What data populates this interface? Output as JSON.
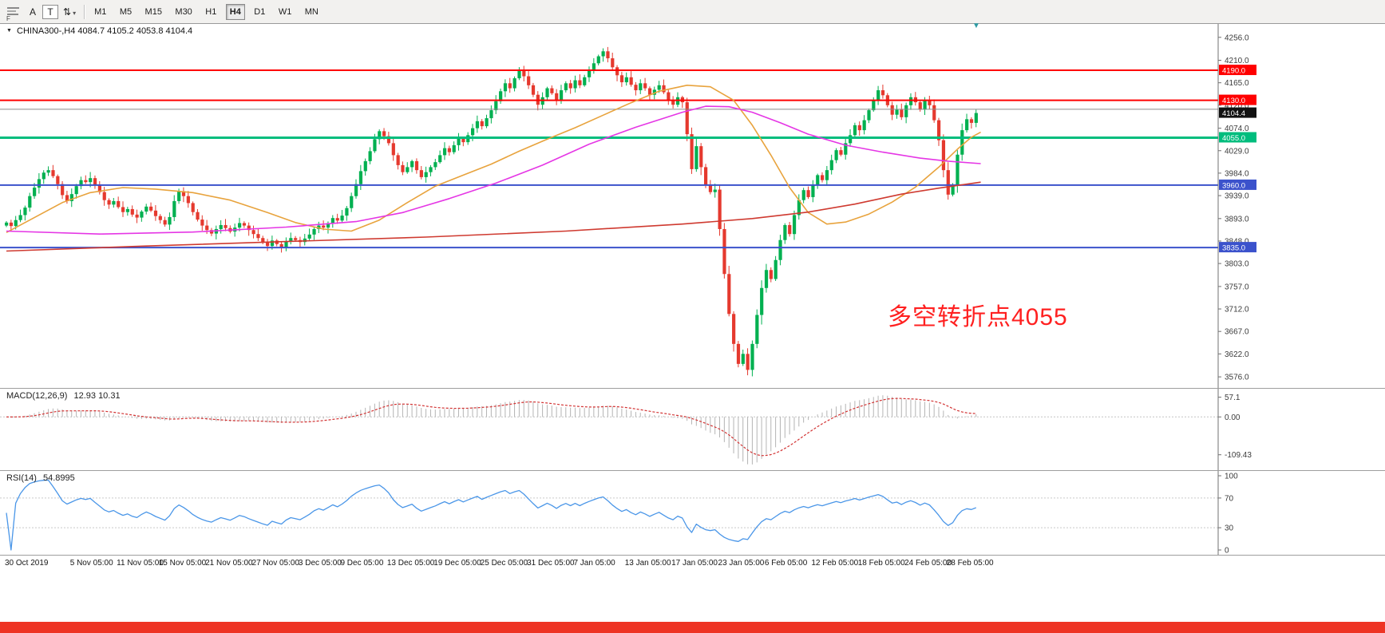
{
  "colors": {
    "up": "#00b050",
    "down": "#e5392e",
    "ma_fast": "#e8a33d",
    "ma_mid": "#e536e5",
    "ma_slow": "#cf3a30",
    "macd_hist": "#b4b4b4",
    "macd_signal": "#d23333",
    "rsi": "#4a96e8",
    "annotation": "#ff2020",
    "strip": "#ee3424",
    "level_red": "#ff0000",
    "level_green": "#00bd7d",
    "level_blue": "#3b52cc",
    "current_tag_bg": "#111111"
  },
  "icons": {
    "collapse_triangle": "▼",
    "scroll_marker": "▼",
    "arrows_tool": "⇅",
    "dropdown_caret": "▾",
    "profile_badge": "F"
  },
  "toolbar": {
    "text_tool": "A",
    "label_tool": "T",
    "timeframes": [
      "M1",
      "M5",
      "M15",
      "M30",
      "H1",
      "H4",
      "D1",
      "W1",
      "MN"
    ],
    "active_timeframe": "H4"
  },
  "chart": {
    "title": "CHINA300-,H4",
    "ohlc": "4084.7 4105.2 4053.8 4104.4",
    "annotation": "多空转折点4055",
    "price_tag": "4104.4"
  },
  "macd": {
    "label": "MACD(12,26,9)",
    "values": "12.93 10.31"
  },
  "rsi": {
    "label": "RSI(14)",
    "value": "54.8995"
  },
  "chart_data": {
    "type": "candlestick",
    "symbol": "CHINA300-",
    "timeframe": "H4",
    "last_bar": {
      "open": 4084.7,
      "high": 4105.2,
      "low": 4053.8,
      "close": 4104.4
    },
    "price_range": [
      3565,
      4270
    ],
    "price_axis_ticks": [
      4256.0,
      4210.0,
      4165.0,
      4120.0,
      4074.0,
      4029.0,
      3984.0,
      3939.0,
      3893.0,
      3848.0,
      3803.0,
      3757.0,
      3712.0,
      3667.0,
      3622.0,
      3576.0
    ],
    "closes": [
      3885,
      3878,
      3890,
      3900,
      3915,
      3938,
      3955,
      3972,
      3985,
      3990,
      3978,
      3962,
      3940,
      3928,
      3942,
      3958,
      3970,
      3966,
      3974,
      3960,
      3946,
      3930,
      3921,
      3928,
      3916,
      3906,
      3912,
      3901,
      3895,
      3907,
      3917,
      3909,
      3898,
      3890,
      3881,
      3896,
      3928,
      3948,
      3938,
      3924,
      3906,
      3891,
      3879,
      3870,
      3863,
      3872,
      3880,
      3874,
      3867,
      3875,
      3884,
      3879,
      3870,
      3862,
      3854,
      3845,
      3838,
      3849,
      3842,
      3836,
      3847,
      3854,
      3850,
      3846,
      3853,
      3861,
      3872,
      3879,
      3875,
      3884,
      3894,
      3889,
      3899,
      3914,
      3938,
      3962,
      3988,
      4008,
      4028,
      4052,
      4068,
      4058,
      4044,
      4020,
      4000,
      3986,
      3996,
      4008,
      3990,
      3976,
      3986,
      3996,
      4006,
      4020,
      4034,
      4026,
      4040,
      4054,
      4046,
      4060,
      4074,
      4088,
      4078,
      4094,
      4110,
      4128,
      4148,
      4164,
      4154,
      4174,
      4190,
      4178,
      4160,
      4141,
      4121,
      4136,
      4154,
      4144,
      4130,
      4150,
      4164,
      4154,
      4170,
      4160,
      4176,
      4190,
      4204,
      4218,
      4228,
      4214,
      4196,
      4180,
      4166,
      4176,
      4161,
      4150,
      4164,
      4154,
      4141,
      4151,
      4160,
      4146,
      4131,
      4121,
      4136,
      4126,
      4062,
      3992,
      4038,
      3996,
      3961,
      3946,
      3951,
      3872,
      3782,
      3702,
      3642,
      3602,
      3622,
      3590,
      3642,
      3700,
      3754,
      3790,
      3772,
      3810,
      3850,
      3880,
      3862,
      3900,
      3930,
      3950,
      3936,
      3960,
      3980,
      3970,
      3990,
      4010,
      4030,
      4021,
      4044,
      4060,
      4080,
      4070,
      4090,
      4110,
      4130,
      4150,
      4140,
      4120,
      4101,
      4111,
      4096,
      4120,
      4136,
      4126,
      4111,
      4130,
      4120,
      4090,
      4050,
      3990,
      3941,
      3961,
      4021,
      4070,
      4092,
      4084.7,
      4104.4
    ],
    "time_labels": [
      {
        "i": 0,
        "label": "30 Oct 2019"
      },
      {
        "i": 14,
        "label": "5 Nov 05:00"
      },
      {
        "i": 24,
        "label": "11 Nov 05:00"
      },
      {
        "i": 33,
        "label": "15 Nov 05:00"
      },
      {
        "i": 43,
        "label": "21 Nov 05:00"
      },
      {
        "i": 53,
        "label": "27 Nov 05:00"
      },
      {
        "i": 63,
        "label": "3 Dec 05:00"
      },
      {
        "i": 72,
        "label": "9 Dec 05:00"
      },
      {
        "i": 82,
        "label": "13 Dec 05:00"
      },
      {
        "i": 92,
        "label": "19 Dec 05:00"
      },
      {
        "i": 102,
        "label": "25 Dec 05:00"
      },
      {
        "i": 112,
        "label": "31 Dec 05:00"
      },
      {
        "i": 122,
        "label": "7 Jan 05:00"
      },
      {
        "i": 133,
        "label": "13 Jan 05:00"
      },
      {
        "i": 143,
        "label": "17 Jan 05:00"
      },
      {
        "i": 153,
        "label": "23 Jan 05:00"
      },
      {
        "i": 163,
        "label": "6 Feb 05:00"
      },
      {
        "i": 173,
        "label": "12 Feb 05:00"
      },
      {
        "i": 183,
        "label": "18 Feb 05:00"
      },
      {
        "i": 193,
        "label": "24 Feb 05:00"
      },
      {
        "i": 202,
        "label": "28 Feb 05:00"
      }
    ],
    "hlines": [
      {
        "price": 4190,
        "color": "#ff0000",
        "width": 2,
        "tag": "4190.0",
        "tag_bg": "#ff0000"
      },
      {
        "price": 4130,
        "color": "#ff0000",
        "width": 2,
        "tag": "4130.0",
        "tag_bg": "#ff0000"
      },
      {
        "price": 4112,
        "color": "#8a8a8a",
        "width": 1
      },
      {
        "price": 4055,
        "color": "#00bd7d",
        "width": 3,
        "tag": "4055.0",
        "tag_bg": "#00bd7d"
      },
      {
        "price": 3960,
        "color": "#3b52cc",
        "width": 2,
        "tag": "3960.0",
        "tag_bg": "#3b52cc"
      },
      {
        "price": 3835,
        "color": "#3b52cc",
        "width": 2,
        "tag": "3835.0",
        "tag_bg": "#3b52cc"
      }
    ],
    "current_price": 4104.4,
    "overlays": [
      {
        "name": "ma-fast-orange",
        "color": "#e8a33d",
        "points": [
          [
            0,
            3865
          ],
          [
            6,
            3895
          ],
          [
            12,
            3925
          ],
          [
            18,
            3945
          ],
          [
            25,
            3955
          ],
          [
            32,
            3952
          ],
          [
            40,
            3945
          ],
          [
            48,
            3930
          ],
          [
            56,
            3905
          ],
          [
            62,
            3885
          ],
          [
            68,
            3872
          ],
          [
            74,
            3868
          ],
          [
            80,
            3890
          ],
          [
            86,
            3925
          ],
          [
            92,
            3958
          ],
          [
            98,
            3980
          ],
          [
            104,
            4002
          ],
          [
            110,
            4028
          ],
          [
            116,
            4052
          ],
          [
            122,
            4075
          ],
          [
            128,
            4100
          ],
          [
            134,
            4125
          ],
          [
            140,
            4148
          ],
          [
            146,
            4160
          ],
          [
            151,
            4157
          ],
          [
            156,
            4130
          ],
          [
            160,
            4080
          ],
          [
            164,
            4020
          ],
          [
            168,
            3955
          ],
          [
            172,
            3905
          ],
          [
            176,
            3882
          ],
          [
            180,
            3886
          ],
          [
            185,
            3902
          ],
          [
            190,
            3926
          ],
          [
            195,
            3956
          ],
          [
            200,
            3996
          ],
          [
            204,
            4032
          ],
          [
            207,
            4056
          ],
          [
            209,
            4066
          ]
        ]
      },
      {
        "name": "ma-mid-magenta",
        "color": "#e536e5",
        "points": [
          [
            0,
            3868
          ],
          [
            20,
            3862
          ],
          [
            40,
            3866
          ],
          [
            60,
            3876
          ],
          [
            75,
            3887
          ],
          [
            85,
            3905
          ],
          [
            95,
            3933
          ],
          [
            105,
            3964
          ],
          [
            115,
            4000
          ],
          [
            125,
            4042
          ],
          [
            135,
            4076
          ],
          [
            145,
            4106
          ],
          [
            150,
            4118
          ],
          [
            155,
            4117
          ],
          [
            160,
            4106
          ],
          [
            166,
            4085
          ],
          [
            172,
            4062
          ],
          [
            180,
            4040
          ],
          [
            188,
            4026
          ],
          [
            196,
            4014
          ],
          [
            202,
            4008
          ],
          [
            209,
            4003
          ]
        ]
      },
      {
        "name": "ma-slow-red",
        "color": "#cf3a30",
        "points": [
          [
            0,
            3828
          ],
          [
            30,
            3838
          ],
          [
            60,
            3847
          ],
          [
            90,
            3856
          ],
          [
            120,
            3868
          ],
          [
            145,
            3882
          ],
          [
            160,
            3893
          ],
          [
            172,
            3906
          ],
          [
            182,
            3922
          ],
          [
            192,
            3942
          ],
          [
            200,
            3954
          ],
          [
            209,
            3966
          ]
        ]
      }
    ],
    "macd": {
      "fast": 12,
      "slow": 26,
      "signal": 9,
      "ticks": [
        {
          "v": 57.1,
          "label": "57.1"
        },
        {
          "v": 0,
          "label": "0.00"
        },
        {
          "v": -109.43,
          "label": "-109.43"
        }
      ]
    },
    "rsi": {
      "period": 14,
      "levels": [
        70,
        30
      ],
      "ticks": [
        {
          "v": 100,
          "label": "100"
        },
        {
          "v": 70,
          "label": "70"
        },
        {
          "v": 30,
          "label": "30"
        },
        {
          "v": 0,
          "label": "0"
        }
      ]
    }
  }
}
